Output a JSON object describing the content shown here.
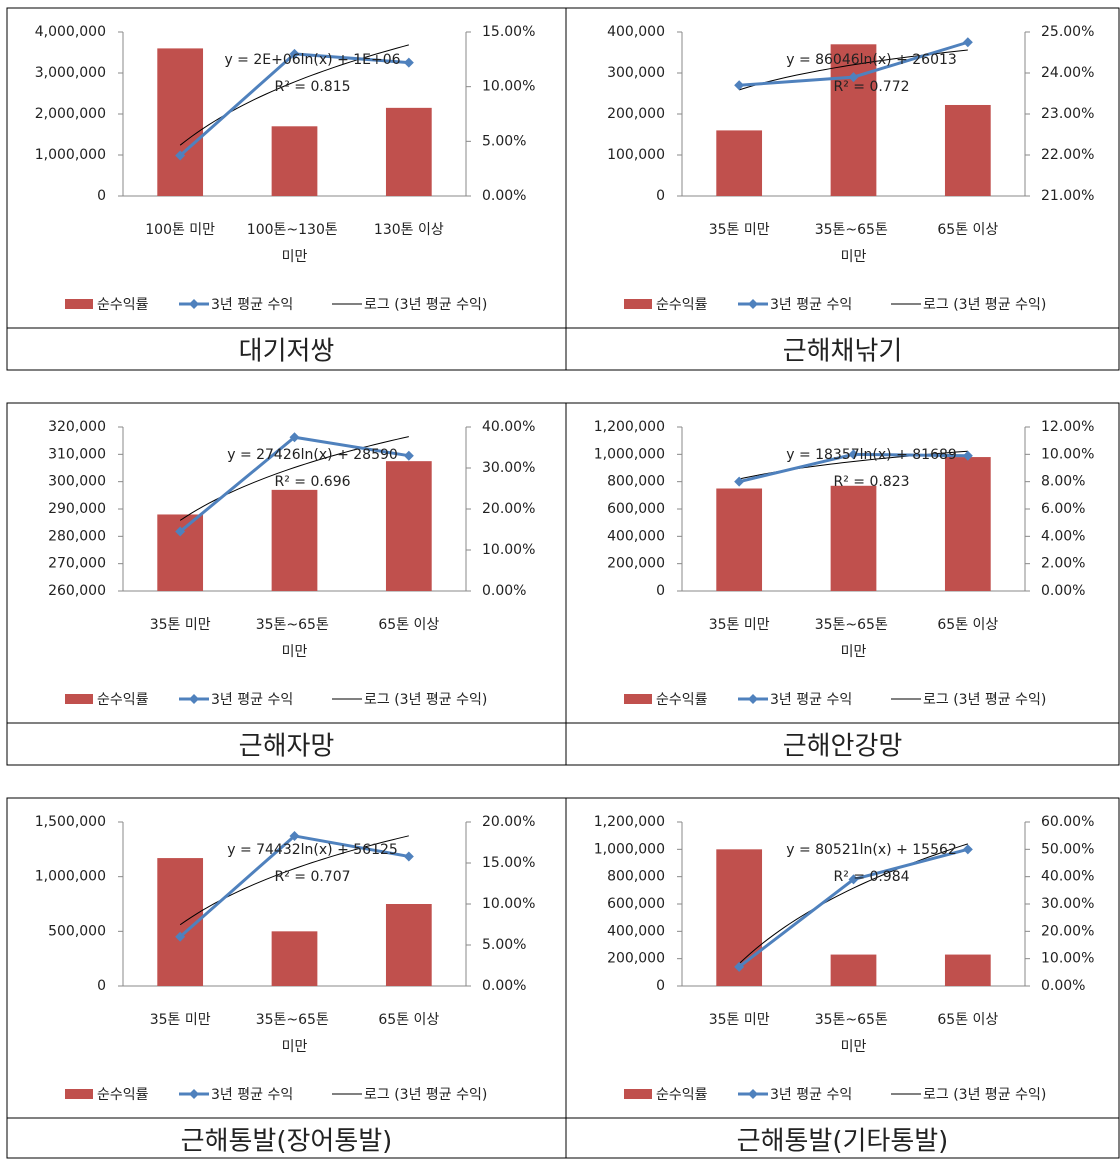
{
  "chart_data": [
    {
      "type": "combo",
      "title": "대기저쌍",
      "categories": [
        "100톤 미만",
        "100톤~130톤 미만",
        "130톤 이상"
      ],
      "series": [
        {
          "name": "순수익률",
          "color": "#c0504d",
          "values": [
            3600000,
            1700000,
            2150000
          ]
        },
        {
          "name": "3년 평균 수익",
          "color": "#4f81bd",
          "axis": "y2",
          "values": [
            3.7,
            13,
            12.2
          ]
        }
      ],
      "trendline": {
        "name": "로그 (3년 평균 수익)",
        "equation": "y = 2E+06ln(x) + 1E+06",
        "r2": "R² = 0.815"
      },
      "ylim": [
        0,
        4000000
      ],
      "yticks": [
        0,
        {
          "value": 1000000,
          "label": "1,000,000"
        },
        {
          "value": 2000000,
          "label": "2,000,000"
        },
        {
          "value": 3000000,
          "label": "3,000,000"
        },
        {
          "value": 4000000,
          "label": "4,000,000"
        }
      ],
      "y2lim": [
        0,
        15
      ],
      "y2ticks": [
        {
          "value": 0,
          "label": "0.00%"
        },
        {
          "value": 5,
          "label": "5.00%"
        },
        {
          "value": 10,
          "label": "10.00%"
        },
        {
          "value": 15,
          "label": "15.00%"
        }
      ]
    },
    {
      "type": "combo",
      "title": "근해채낚기",
      "categories": [
        "35톤 미만",
        "35톤~65톤 미만",
        "65톤 이상"
      ],
      "series": [
        {
          "name": "순수익률",
          "color": "#c0504d",
          "values": [
            160000,
            370000,
            222000
          ]
        },
        {
          "name": "3년 평균 수익",
          "color": "#4f81bd",
          "axis": "y2",
          "values": [
            23.7,
            23.9,
            24.75
          ]
        }
      ],
      "trendline": {
        "name": "로그 (3년 평균 수익)",
        "equation": "y = 86046ln(x) + 26013",
        "r2": "R² = 0.772"
      },
      "ylim": [
        0,
        400000
      ],
      "yticks": [
        0,
        {
          "value": 100000,
          "label": "100,000"
        },
        {
          "value": 200000,
          "label": "200,000"
        },
        {
          "value": 300000,
          "label": "300,000"
        },
        {
          "value": 400000,
          "label": "400,000"
        }
      ],
      "y2lim": [
        21,
        25
      ],
      "y2ticks": [
        {
          "value": 21,
          "label": "21.00%"
        },
        {
          "value": 22,
          "label": "22.00%"
        },
        {
          "value": 23,
          "label": "23.00%"
        },
        {
          "value": 24,
          "label": "24.00%"
        },
        {
          "value": 25,
          "label": "25.00%"
        }
      ]
    },
    {
      "type": "combo",
      "title": "근해자망",
      "categories": [
        "35톤 미만",
        "35톤~65톤 미만",
        "65톤 이상"
      ],
      "series": [
        {
          "name": "순수익률",
          "color": "#c0504d",
          "values": [
            288000,
            297000,
            307500
          ]
        },
        {
          "name": "3년 평균 수익",
          "color": "#4f81bd",
          "axis": "y2",
          "values": [
            14.5,
            37.5,
            33
          ]
        }
      ],
      "trendline": {
        "name": "로그 (3년 평균 수익)",
        "equation": "y = 27426ln(x) + 28590",
        "r2": "R² = 0.696"
      },
      "ylim": [
        260000,
        320000
      ],
      "yticks": [
        {
          "value": 260000,
          "label": "260,000"
        },
        {
          "value": 270000,
          "label": "270,000"
        },
        {
          "value": 280000,
          "label": "280,000"
        },
        {
          "value": 290000,
          "label": "290,000"
        },
        {
          "value": 300000,
          "label": "300,000"
        },
        {
          "value": 310000,
          "label": "310,000"
        },
        {
          "value": 320000,
          "label": "320,000"
        }
      ],
      "y2lim": [
        0,
        40
      ],
      "y2ticks": [
        {
          "value": 0,
          "label": "0.00%"
        },
        {
          "value": 10,
          "label": "10.00%"
        },
        {
          "value": 20,
          "label": "20.00%"
        },
        {
          "value": 30,
          "label": "30.00%"
        },
        {
          "value": 40,
          "label": "40.00%"
        }
      ]
    },
    {
      "type": "combo",
      "title": "근해안강망",
      "categories": [
        "35톤 미만",
        "35톤~65톤 미만",
        "65톤 이상"
      ],
      "series": [
        {
          "name": "순수익률",
          "color": "#c0504d",
          "values": [
            750000,
            770000,
            980000
          ]
        },
        {
          "name": "3년 평균 수익",
          "color": "#4f81bd",
          "axis": "y2",
          "values": [
            8.0,
            10.0,
            9.9
          ]
        }
      ],
      "trendline": {
        "name": "로그 (3년 평균 수익)",
        "equation": "y = 18357ln(x) + 81689",
        "r2": "R² = 0.823"
      },
      "ylim": [
        0,
        1200000
      ],
      "yticks": [
        0,
        {
          "value": 200000,
          "label": "200,000"
        },
        {
          "value": 400000,
          "label": "400,000"
        },
        {
          "value": 600000,
          "label": "600,000"
        },
        {
          "value": 800000,
          "label": "800,000"
        },
        {
          "value": 1000000,
          "label": "1,000,000"
        },
        {
          "value": 1200000,
          "label": "1,200,000"
        }
      ],
      "y2lim": [
        0,
        12
      ],
      "y2ticks": [
        {
          "value": 0,
          "label": "0.00%"
        },
        {
          "value": 2,
          "label": "2.00%"
        },
        {
          "value": 4,
          "label": "4.00%"
        },
        {
          "value": 6,
          "label": "6.00%"
        },
        {
          "value": 8,
          "label": "8.00%"
        },
        {
          "value": 10,
          "label": "10.00%"
        },
        {
          "value": 12,
          "label": "12.00%"
        }
      ]
    },
    {
      "type": "combo",
      "title": "근해통발(장어통발)",
      "categories": [
        "35톤 미만",
        "35톤~65톤 미만",
        "65톤 이상"
      ],
      "series": [
        {
          "name": "순수익률",
          "color": "#c0504d",
          "values": [
            1170000,
            500000,
            750000
          ]
        },
        {
          "name": "3년 평균 수익",
          "color": "#4f81bd",
          "axis": "y2",
          "values": [
            6,
            18.3,
            15.8
          ]
        }
      ],
      "trendline": {
        "name": "로그 (3년 평균 수익)",
        "equation": "y = 74432ln(x) + 56125",
        "r2": "R² = 0.707"
      },
      "ylim": [
        0,
        1500000
      ],
      "yticks": [
        0,
        {
          "value": 500000,
          "label": "500,000"
        },
        {
          "value": 1000000,
          "label": "1,000,000"
        },
        {
          "value": 1500000,
          "label": "1,500,000"
        }
      ],
      "y2lim": [
        0,
        20
      ],
      "y2ticks": [
        {
          "value": 0,
          "label": "0.00%"
        },
        {
          "value": 5,
          "label": "5.00%"
        },
        {
          "value": 10,
          "label": "10.00%"
        },
        {
          "value": 15,
          "label": "15.00%"
        },
        {
          "value": 20,
          "label": "20.00%"
        }
      ]
    },
    {
      "type": "combo",
      "title": "근해통발(기타통발)",
      "categories": [
        "35톤 미만",
        "35톤~65톤 미만",
        "65톤 이상"
      ],
      "series": [
        {
          "name": "순수익률",
          "color": "#c0504d",
          "values": [
            1000000,
            230000,
            230000
          ]
        },
        {
          "name": "3년 평균 수익",
          "color": "#4f81bd",
          "axis": "y2",
          "values": [
            7,
            39,
            50
          ]
        }
      ],
      "trendline": {
        "name": "로그 (3년 평균 수익)",
        "equation": "y = 80521ln(x) + 15562",
        "r2": "R² = 0.984"
      },
      "ylim": [
        0,
        1200000
      ],
      "yticks": [
        0,
        {
          "value": 200000,
          "label": "200,000"
        },
        {
          "value": 400000,
          "label": "400,000"
        },
        {
          "value": 600000,
          "label": "600,000"
        },
        {
          "value": 800000,
          "label": "800,000"
        },
        {
          "value": 1000000,
          "label": "1,000,000"
        },
        {
          "value": 1200000,
          "label": "1,200,000"
        }
      ],
      "y2lim": [
        0,
        60
      ],
      "y2ticks": [
        {
          "value": 0,
          "label": "0.00%"
        },
        {
          "value": 10,
          "label": "10.00%"
        },
        {
          "value": 20,
          "label": "20.00%"
        },
        {
          "value": 30,
          "label": "30.00%"
        },
        {
          "value": 40,
          "label": "40.00%"
        },
        {
          "value": 50,
          "label": "50.00%"
        },
        {
          "value": 60,
          "label": "60.00%"
        }
      ]
    }
  ]
}
